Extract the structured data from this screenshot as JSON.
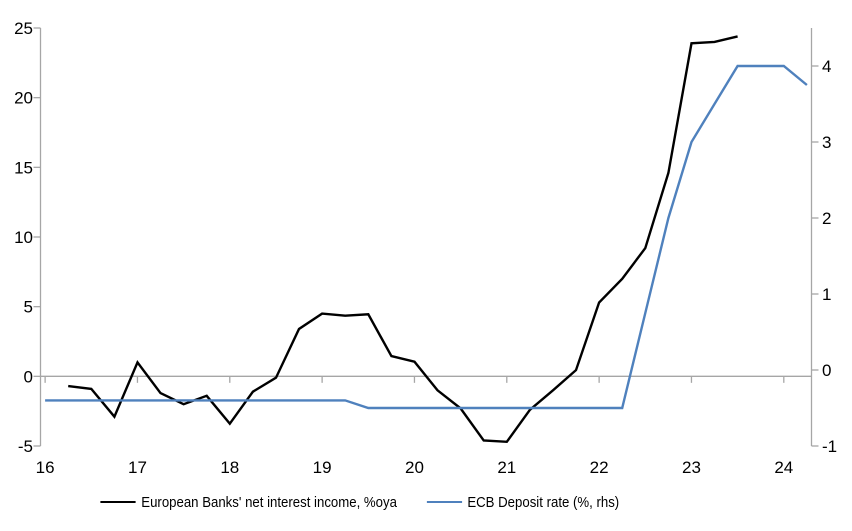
{
  "chart_data": {
    "type": "line",
    "title": "",
    "legend_position": "bottom",
    "grid": "zero-line-only",
    "x_axis": {
      "tick_years": [
        16,
        17,
        18,
        19,
        20,
        21,
        22,
        23,
        24
      ],
      "tick_labels": [
        "16",
        "17",
        "18",
        "19",
        "20",
        "21",
        "22",
        "23",
        "24"
      ],
      "range": [
        15.95,
        24.3
      ]
    },
    "left_axis": {
      "ticks": [
        -5,
        0,
        5,
        10,
        15,
        20,
        25
      ],
      "tick_labels": [
        "-5",
        "0",
        "5",
        "10",
        "15",
        "20",
        "25"
      ],
      "range": [
        -5,
        25
      ]
    },
    "right_axis": {
      "ticks": [
        -1,
        0,
        1,
        2,
        3,
        4
      ],
      "tick_labels": [
        "-1",
        "0",
        "1",
        "2",
        "3",
        "4"
      ],
      "range": [
        -1,
        4.5
      ]
    },
    "series": [
      {
        "name": "European Banks' net interest income, %oya",
        "axis": "left",
        "color": "#000000",
        "x": [
          16.25,
          16.5,
          16.75,
          17.0,
          17.25,
          17.5,
          17.75,
          18.0,
          18.25,
          18.5,
          18.75,
          19.0,
          19.25,
          19.5,
          19.75,
          20.0,
          20.25,
          20.5,
          20.75,
          21.0,
          21.25,
          21.5,
          21.75,
          22.0,
          22.25,
          22.5,
          22.75,
          23.0,
          23.25,
          23.5
        ],
        "values": [
          -0.7,
          -0.9,
          -2.9,
          1.0,
          -1.2,
          -2.0,
          -1.4,
          -3.4,
          -1.1,
          -0.1,
          3.4,
          4.5,
          4.35,
          4.45,
          1.45,
          1.05,
          -1.0,
          -2.3,
          -4.6,
          -4.7,
          -2.4,
          -1.0,
          0.45,
          5.3,
          7.0,
          9.2,
          14.6,
          23.9,
          24.0,
          24.4
        ]
      },
      {
        "name": "ECB Deposit rate (%, rhs)",
        "axis": "right",
        "color": "#4F81BD",
        "x": [
          16.0,
          16.25,
          16.5,
          16.75,
          17.0,
          17.25,
          17.5,
          17.75,
          18.0,
          18.25,
          18.5,
          18.75,
          19.0,
          19.25,
          19.5,
          19.75,
          20.0,
          20.25,
          20.5,
          20.75,
          21.0,
          21.25,
          21.5,
          21.75,
          22.0,
          22.25,
          22.5,
          22.75,
          23.0,
          23.25,
          23.5,
          23.75,
          24.0,
          24.25
        ],
        "values": [
          -0.4,
          -0.4,
          -0.4,
          -0.4,
          -0.4,
          -0.4,
          -0.4,
          -0.4,
          -0.4,
          -0.4,
          -0.4,
          -0.4,
          -0.4,
          -0.4,
          -0.5,
          -0.5,
          -0.5,
          -0.5,
          -0.5,
          -0.5,
          -0.5,
          -0.5,
          -0.5,
          -0.5,
          -0.5,
          -0.5,
          0.75,
          2.0,
          3.0,
          3.5,
          4.0,
          4.0,
          4.0,
          3.75
        ]
      }
    ],
    "colors": {
      "axis": "#A6A6A6",
      "zero_line": "#A6A6A6",
      "text": "#000000",
      "background": "#FFFFFF"
    }
  }
}
